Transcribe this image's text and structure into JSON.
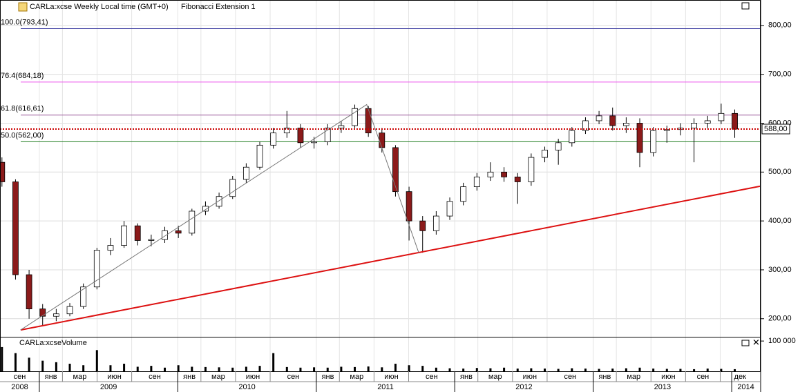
{
  "header": {
    "symbol": "CARLa:xcse Weekly Local time (GMT+0)",
    "study": "Fibonacci Extension 1"
  },
  "chart_data": [
    {
      "type": "candlestick",
      "x": [
        2008.73,
        2008.828,
        2008.926,
        2009.024,
        2009.122,
        2009.22,
        2009.318,
        2009.416,
        2009.514,
        2009.612,
        2009.71,
        2009.808,
        2009.906,
        2010.004,
        2010.102,
        2010.2,
        2010.298,
        2010.396,
        2010.494,
        2010.592,
        2010.69,
        2010.788,
        2010.886,
        2010.984,
        2011.082,
        2011.18,
        2011.278,
        2011.376,
        2011.474,
        2011.572,
        2011.67,
        2011.768,
        2011.866,
        2011.964,
        2012.062,
        2012.16,
        2012.258,
        2012.356,
        2012.454,
        2012.552,
        2012.65,
        2012.748,
        2012.846,
        2012.944,
        2013.042,
        2013.14,
        2013.238,
        2013.336,
        2013.434,
        2013.532,
        2013.63,
        2013.728,
        2013.826,
        2013.924,
        2014.022
      ],
      "open": [
        520,
        480,
        290,
        220,
        205,
        210,
        225,
        265,
        340,
        350,
        390,
        360,
        362,
        380,
        375,
        420,
        430,
        450,
        485,
        510,
        555,
        580,
        590,
        560,
        562,
        590,
        595,
        630,
        580,
        550,
        460,
        400,
        380,
        410,
        440,
        470,
        490,
        500,
        490,
        480,
        530,
        545,
        560,
        585,
        605,
        615,
        595,
        600,
        540,
        585,
        587,
        590,
        600,
        605,
        620
      ],
      "high": [
        530,
        485,
        300,
        230,
        220,
        232,
        272,
        345,
        365,
        400,
        395,
        372,
        388,
        390,
        425,
        440,
        458,
        492,
        518,
        562,
        590,
        625,
        598,
        572,
        598,
        605,
        638,
        635,
        590,
        555,
        470,
        410,
        420,
        448,
        478,
        498,
        520,
        510,
        498,
        538,
        552,
        568,
        592,
        612,
        625,
        632,
        612,
        610,
        592,
        595,
        600,
        610,
        615,
        640,
        628
      ],
      "low": [
        470,
        280,
        200,
        185,
        195,
        205,
        220,
        260,
        330,
        345,
        350,
        348,
        355,
        365,
        370,
        412,
        425,
        445,
        478,
        505,
        548,
        570,
        550,
        548,
        555,
        580,
        590,
        572,
        540,
        450,
        360,
        335,
        372,
        402,
        432,
        462,
        482,
        480,
        435,
        472,
        520,
        515,
        552,
        578,
        598,
        585,
        580,
        510,
        532,
        560,
        575,
        520,
        590,
        598,
        570
      ],
      "close": [
        480,
        290,
        220,
        205,
        210,
        225,
        265,
        340,
        350,
        390,
        360,
        362,
        380,
        375,
        420,
        430,
        450,
        485,
        510,
        555,
        580,
        590,
        560,
        562,
        590,
        595,
        630,
        580,
        550,
        460,
        400,
        380,
        410,
        440,
        470,
        490,
        500,
        490,
        480,
        530,
        545,
        560,
        585,
        605,
        615,
        595,
        600,
        540,
        585,
        587,
        590,
        600,
        605,
        620,
        588
      ],
      "up_color": "#ffffff",
      "down_color": "#8b1a1a",
      "xlim": [
        2008.716,
        2014.204
      ],
      "ylim": [
        163,
        852
      ],
      "yticks": [
        {
          "value": 200,
          "label": "200,00"
        },
        {
          "value": 300,
          "label": "300,00"
        },
        {
          "value": 400,
          "label": "400,00"
        },
        {
          "value": 500,
          "label": "500,00"
        },
        {
          "value": 600,
          "label": "600,00"
        },
        {
          "value": 700,
          "label": "700,00"
        },
        {
          "value": 800,
          "label": "800,00"
        }
      ],
      "xticks": [
        {
          "value": 2008.667,
          "label": "сен"
        },
        {
          "value": 2009.0,
          "label": "янв"
        },
        {
          "value": 2009.167,
          "label": "мар"
        },
        {
          "value": 2009.417,
          "label": "июн"
        },
        {
          "value": 2009.667,
          "label": "сен"
        },
        {
          "value": 2010.0,
          "label": "янв"
        },
        {
          "value": 2010.167,
          "label": "мар"
        },
        {
          "value": 2010.417,
          "label": "июн"
        },
        {
          "value": 2010.667,
          "label": "сен"
        },
        {
          "value": 2011.0,
          "label": "янв"
        },
        {
          "value": 2011.167,
          "label": "мар"
        },
        {
          "value": 2011.417,
          "label": "июн"
        },
        {
          "value": 2011.667,
          "label": "сен"
        },
        {
          "value": 2012.0,
          "label": "янв"
        },
        {
          "value": 2012.167,
          "label": "мар"
        },
        {
          "value": 2012.417,
          "label": "июн"
        },
        {
          "value": 2012.667,
          "label": "сен"
        },
        {
          "value": 2013.0,
          "label": "янв"
        },
        {
          "value": 2013.167,
          "label": "мар"
        },
        {
          "value": 2013.417,
          "label": "июн"
        },
        {
          "value": 2013.667,
          "label": "сен"
        },
        {
          "value": 2013.917,
          "label": "дек"
        }
      ],
      "year_ticks": [
        2008,
        2009,
        2010,
        2011,
        2012,
        2013,
        2014
      ],
      "grid": true,
      "fib_levels": [
        {
          "label": "100.0(793,41)",
          "value": 793.41,
          "color": "#3a3aa0"
        },
        {
          "label": "76.4(684,18)",
          "value": 684.18,
          "color": "#ee55ee"
        },
        {
          "label": "61.8(616,61)",
          "value": 616.61,
          "color": "#9a5a9a"
        },
        {
          "label": "50.0(562,00)",
          "value": 562.0,
          "color": "#1a7a1a"
        }
      ],
      "price_marker": {
        "value": 588,
        "label": "588,00",
        "color": "#cc0000"
      },
      "lines": [
        {
          "x": [
            2008.865,
            2014.204
          ],
          "y": [
            177,
            471
          ],
          "color": "#dd1111",
          "width": 2
        },
        {
          "x": [
            2008.865,
            2011.364,
            2011.74
          ],
          "y": [
            177,
            638,
            335
          ],
          "color": "#777777",
          "width": 1
        }
      ]
    },
    {
      "type": "bar",
      "title": "CARLa:xcseVolume",
      "values": [
        80000,
        60000,
        45000,
        35000,
        30000,
        25000,
        20000,
        70000,
        20000,
        25000,
        15000,
        18000,
        12000,
        20000,
        15000,
        14000,
        13000,
        12000,
        15000,
        18000,
        60000,
        14000,
        12000,
        13000,
        12000,
        15000,
        14000,
        16000,
        13000,
        25000,
        20000,
        18000,
        12000,
        10000,
        9000,
        11000,
        10000,
        12000,
        9000,
        10000,
        9000,
        8000,
        10000,
        9000,
        8000,
        9000,
        10000,
        12000,
        9000,
        8000,
        8000,
        7000,
        9000,
        8000,
        7000
      ],
      "color": "#000000",
      "ylim": [
        0,
        114000
      ],
      "yticks": [
        {
          "value": 100000,
          "label": "100 000"
        }
      ]
    }
  ]
}
